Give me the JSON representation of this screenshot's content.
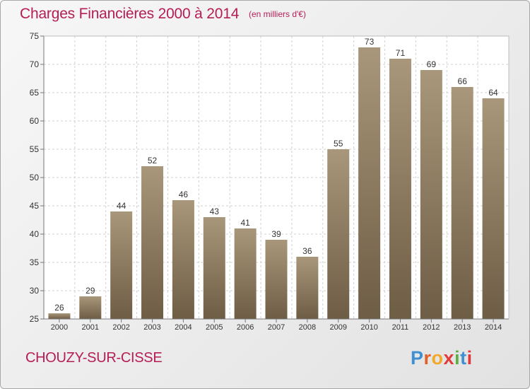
{
  "title": "Charges Financières 2000 à 2014",
  "subtitle": "(en milliers d'€)",
  "place": "CHOUZY-SUR-CISSE",
  "logo": {
    "text": "Proxiti",
    "letter_colors": [
      "#3f8fd2",
      "#e0622a",
      "#f2a82a",
      "#e03a3a",
      "#5ab043",
      "#3f8fd2",
      "#e03a3a"
    ]
  },
  "colors": {
    "bar_top": "#a8977a",
    "bar_bottom": "#6e5d45",
    "title": "#b51d55"
  },
  "chart_data": {
    "type": "bar",
    "categories": [
      "2000",
      "2001",
      "2002",
      "2003",
      "2004",
      "2005",
      "2006",
      "2007",
      "2008",
      "2009",
      "2010",
      "2011",
      "2012",
      "2013",
      "2014"
    ],
    "values": [
      26,
      29,
      44,
      52,
      46,
      43,
      41,
      39,
      36,
      55,
      73,
      71,
      69,
      66,
      64
    ],
    "ylim": [
      25,
      75
    ],
    "yticks": [
      25,
      30,
      35,
      40,
      45,
      50,
      55,
      60,
      65,
      70,
      75
    ],
    "grid": true,
    "data_labels": true
  }
}
